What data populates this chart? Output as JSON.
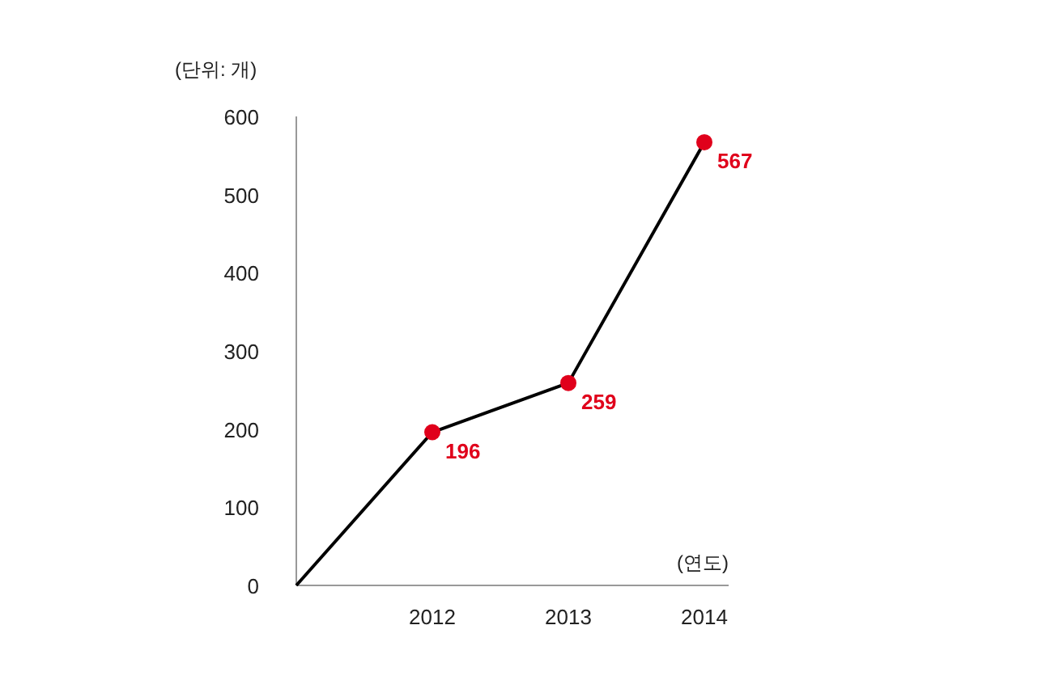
{
  "chart_data": {
    "type": "line",
    "ylabel": "(단위: 개)",
    "xlabel": "(연도)",
    "categories": [
      null,
      "2012",
      "2013",
      "2014"
    ],
    "series": [
      {
        "color": "#000000",
        "values": [
          0,
          196,
          259,
          567
        ]
      },
      {
        "type": "scatter",
        "color": "#e0001b",
        "values": [
          null,
          196,
          259,
          567
        ],
        "value_labels": [
          null,
          "196",
          "259",
          "567"
        ],
        "marker": "circle"
      }
    ],
    "ylim": [
      0,
      600
    ],
    "yticks": [
      0,
      100,
      200,
      300,
      400,
      500,
      600
    ],
    "grid": false
  }
}
